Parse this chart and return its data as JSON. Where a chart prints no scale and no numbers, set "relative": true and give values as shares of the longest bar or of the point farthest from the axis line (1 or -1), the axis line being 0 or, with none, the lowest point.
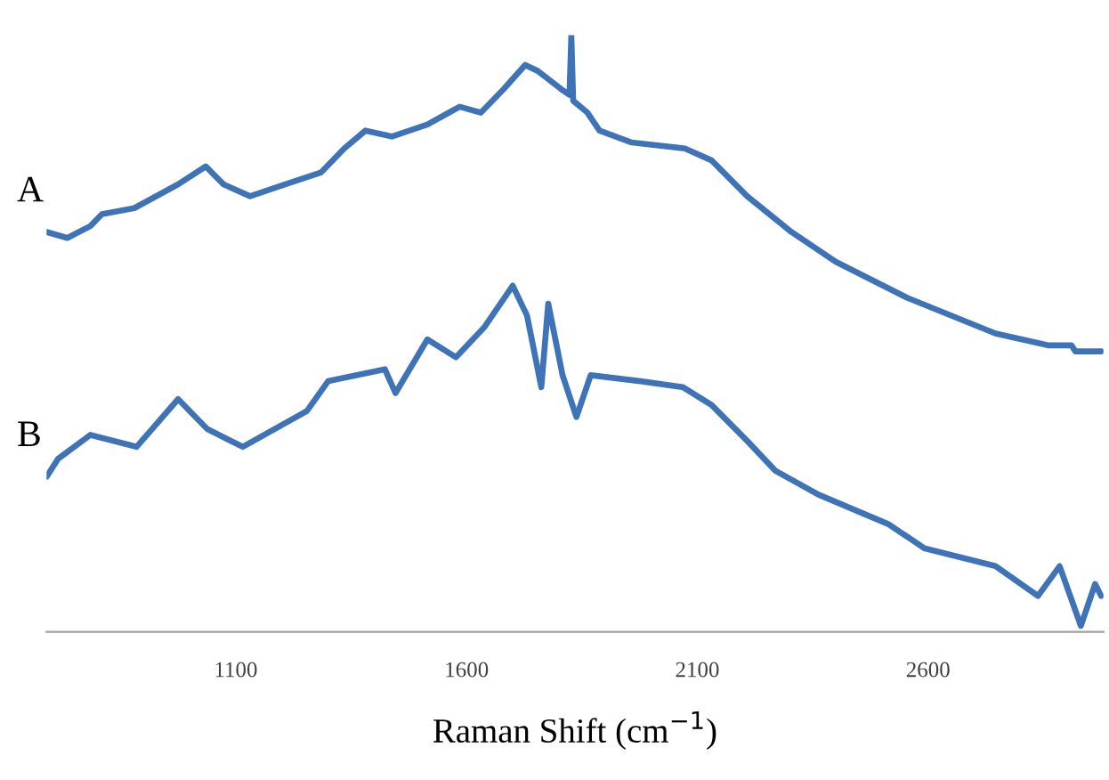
{
  "chart_data": {
    "type": "line",
    "xlabel": "Raman Shift (cm$^{−1}$)",
    "relative": true,
    "xlim": [
      690,
      2980
    ],
    "xticks": [
      1100,
      1600,
      2100,
      2600
    ],
    "grid": false,
    "legend": false,
    "marker": "none",
    "line_style": "solid",
    "series": [
      {
        "name": "A",
        "color": "#3f73b8",
        "x": [
          690,
          735,
          785,
          810,
          880,
          975,
          1035,
          1073,
          1131,
          1208,
          1285,
          1335,
          1381,
          1438,
          1515,
          1585,
          1631,
          1681,
          1727,
          1754,
          1804,
          1823,
          1827,
          1831,
          1862,
          1888,
          1958,
          2073,
          2131,
          2208,
          2304,
          2400,
          2554,
          2746,
          2862,
          2911,
          2919,
          2975
        ],
        "values": [
          0.67,
          0.66,
          0.68,
          0.7,
          0.71,
          0.75,
          0.78,
          0.75,
          0.73,
          0.75,
          0.77,
          0.81,
          0.84,
          0.83,
          0.85,
          0.88,
          0.87,
          0.91,
          0.95,
          0.94,
          0.91,
          0.9,
          1.0,
          0.89,
          0.87,
          0.84,
          0.82,
          0.81,
          0.79,
          0.73,
          0.67,
          0.62,
          0.56,
          0.5,
          0.48,
          0.48,
          0.47,
          0.47
        ]
      },
      {
        "name": "B",
        "color": "#3f73b8",
        "x": [
          690,
          715,
          785,
          885,
          975,
          1038,
          1115,
          1254,
          1300,
          1423,
          1446,
          1515,
          1577,
          1638,
          1700,
          1731,
          1762,
          1777,
          1808,
          1838,
          1869,
          1977,
          2069,
          2131,
          2208,
          2269,
          2362,
          2515,
          2592,
          2746,
          2838,
          2885,
          2931,
          2962,
          2975
        ],
        "values": [
          0.26,
          0.29,
          0.33,
          0.31,
          0.39,
          0.34,
          0.31,
          0.37,
          0.42,
          0.44,
          0.4,
          0.49,
          0.46,
          0.51,
          0.58,
          0.53,
          0.41,
          0.55,
          0.43,
          0.36,
          0.43,
          0.42,
          0.41,
          0.38,
          0.32,
          0.27,
          0.23,
          0.18,
          0.14,
          0.11,
          0.06,
          0.11,
          0.01,
          0.08,
          0.06
        ]
      }
    ]
  }
}
